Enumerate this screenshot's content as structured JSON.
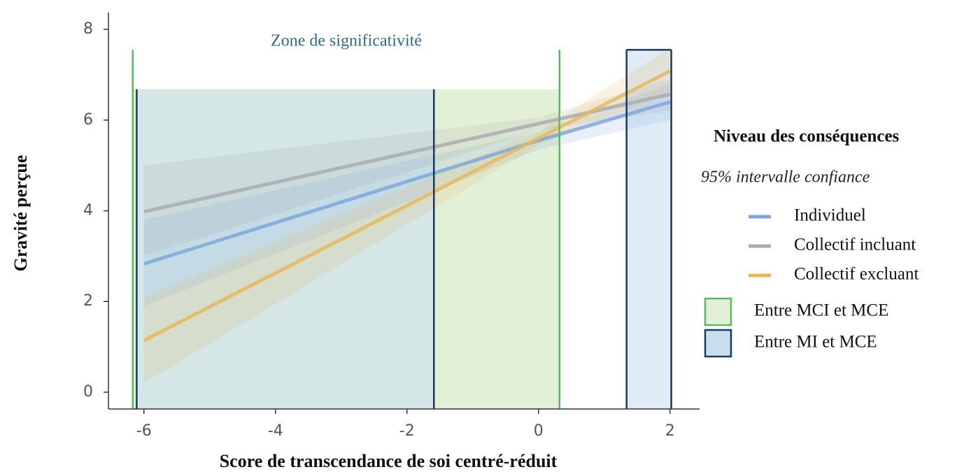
{
  "chart_data": {
    "type": "line",
    "x_label": "Score de transcendance de soi centré-réduit",
    "y_label": "Gravité perçue",
    "annotation": "Zone de significativité",
    "legend_title": "Niveau des conséquences",
    "legend_subtitle": "95% intervalle confiance",
    "xlim": [
      -6.54,
      2.45
    ],
    "ylim": [
      -0.37,
      8.37
    ],
    "xticks": [
      -6,
      -4,
      -2,
      0,
      2
    ],
    "yticks": [
      0,
      2,
      4,
      6,
      8
    ],
    "series": [
      {
        "name": "Individuel",
        "color": "#7fa7dc",
        "x": [
          -6,
          0,
          2
        ],
        "values": [
          2.83,
          5.55,
          6.4
        ],
        "lower": [
          1.9,
          5.35,
          6.0
        ],
        "upper": [
          3.8,
          5.75,
          6.8
        ]
      },
      {
        "name": "Collectif incluant",
        "color": "#a9acae",
        "x": [
          -6,
          0,
          2
        ],
        "values": [
          3.98,
          5.92,
          6.57
        ],
        "lower": [
          3.0,
          5.78,
          6.2
        ],
        "upper": [
          5.0,
          6.06,
          6.9
        ]
      },
      {
        "name": "Collectif excluant",
        "color": "#e8b75c",
        "x": [
          -6,
          0,
          2
        ],
        "values": [
          1.14,
          5.6,
          7.08
        ],
        "lower": [
          0.2,
          5.45,
          6.6
        ],
        "upper": [
          2.1,
          5.75,
          7.6
        ]
      }
    ],
    "zones": [
      {
        "name": "Entre MCI et MCE",
        "color": "#5cb85c",
        "fill": "#e3f0d8",
        "ranges": [
          {
            "xmin": -6.17,
            "xmax": 0.32,
            "line_top": 7.55,
            "fill_top": 6.68,
            "box": false
          }
        ]
      },
      {
        "name": "Entre MI et MCE",
        "color": "#1b3a5c",
        "fill": "#c9dff0",
        "ranges": [
          {
            "xmin": -6.11,
            "xmax": -1.59,
            "line_top": 6.68,
            "fill_top": 6.68,
            "box": false
          },
          {
            "xmin": 1.34,
            "xmax": 2.02,
            "line_top": 7.55,
            "fill_top": 7.55,
            "box": true
          }
        ]
      }
    ]
  }
}
